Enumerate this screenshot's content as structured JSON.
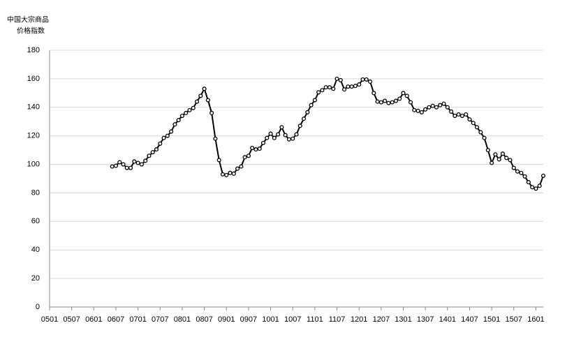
{
  "chart_data": {
    "type": "line",
    "y_label": [
      "中国大宗商品",
      "价格指数"
    ],
    "categories": [
      "0501",
      null,
      null,
      null,
      null,
      null,
      "0507",
      null,
      null,
      null,
      null,
      null,
      "0601",
      null,
      null,
      null,
      null,
      null,
      "0607",
      null,
      null,
      null,
      null,
      null,
      "0701",
      null,
      null,
      null,
      null,
      null,
      "0707",
      null,
      null,
      null,
      null,
      null,
      "0801",
      null,
      null,
      null,
      null,
      null,
      "0807",
      null,
      null,
      null,
      null,
      null,
      "0901",
      null,
      null,
      null,
      null,
      null,
      "0907",
      null,
      null,
      null,
      null,
      null,
      "1001",
      null,
      null,
      null,
      null,
      null,
      "1007",
      null,
      null,
      null,
      null,
      null,
      "1101",
      null,
      null,
      null,
      null,
      null,
      "1107",
      null,
      null,
      null,
      null,
      null,
      "1201",
      null,
      null,
      null,
      null,
      null,
      "1207",
      null,
      null,
      null,
      null,
      null,
      "1301",
      null,
      null,
      null,
      null,
      null,
      "1307",
      null,
      null,
      null,
      null,
      null,
      "1401",
      null,
      null,
      null,
      null,
      null,
      "1407",
      null,
      null,
      null,
      null,
      null,
      "1501",
      null,
      null,
      null,
      null,
      null,
      "1507",
      null,
      null,
      null,
      null,
      null,
      "1601",
      null,
      null
    ],
    "series": [
      {
        "name": "中国大宗商品价格指数",
        "color": "#000000",
        "values": [
          null,
          null,
          null,
          null,
          null,
          null,
          null,
          null,
          null,
          null,
          null,
          null,
          null,
          null,
          null,
          null,
          null,
          98.5,
          99,
          101.5,
          100,
          97.5,
          97.5,
          102,
          101,
          100,
          102.5,
          106,
          108.5,
          110.5,
          114.5,
          118.5,
          120,
          123,
          128,
          131,
          134,
          136,
          138,
          139.5,
          144,
          148,
          153,
          145,
          136,
          118,
          103,
          93,
          92.5,
          94,
          93.5,
          97,
          98.5,
          105,
          106,
          111.5,
          110.5,
          111,
          115,
          118.5,
          121.5,
          118.5,
          121,
          126,
          120.5,
          117.5,
          118,
          121,
          127,
          132,
          136.5,
          141.5,
          145,
          150.5,
          152,
          154,
          154,
          153,
          160,
          159,
          152.5,
          154.5,
          154.5,
          155,
          156,
          159.5,
          159.5,
          158,
          150,
          144,
          143.5,
          144.5,
          143,
          143.5,
          144.5,
          146,
          150,
          148,
          143.5,
          138,
          137.5,
          136.5,
          138.5,
          140,
          141,
          140,
          141.5,
          142.5,
          140,
          137,
          134,
          135,
          134,
          135,
          131.5,
          129,
          126,
          122.5,
          118.5,
          110,
          101,
          107,
          103.5,
          107.5,
          104.5,
          103,
          97.5,
          95,
          94,
          91.5,
          87.5,
          84,
          83,
          85,
          92
        ]
      }
    ],
    "ylim": [
      0,
      180
    ],
    "yticks": [
      0,
      20,
      40,
      60,
      80,
      100,
      120,
      140,
      160,
      180
    ],
    "grid": true,
    "markers": true
  }
}
